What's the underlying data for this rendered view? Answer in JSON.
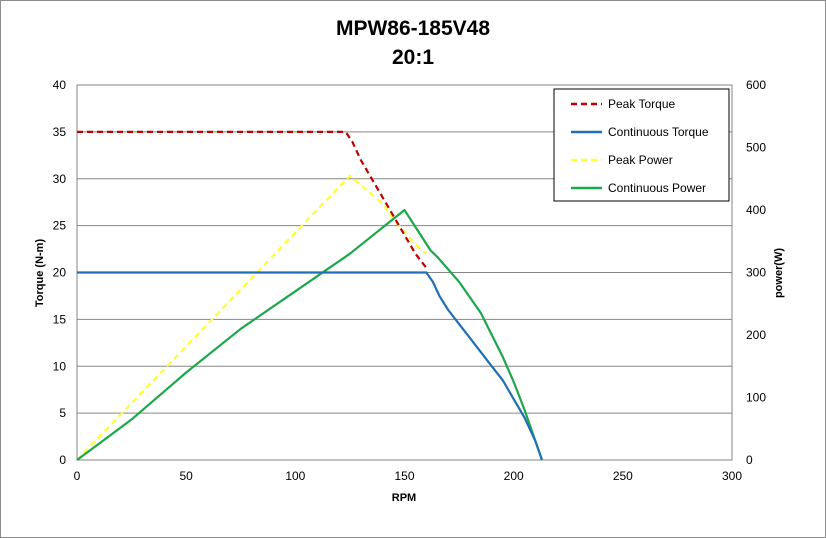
{
  "chart_data": {
    "type": "line",
    "title": "MPW86-185V48",
    "subtitle": "20:1",
    "xlabel": "RPM",
    "ylabel": "Torque (N-m)",
    "y2label": "power(W)",
    "xlim": [
      0,
      300
    ],
    "ylim": [
      0,
      40
    ],
    "y2lim": [
      0,
      600
    ],
    "xticks": [
      0,
      50,
      100,
      150,
      200,
      250,
      300
    ],
    "yticks": [
      0,
      5,
      10,
      15,
      20,
      25,
      30,
      35,
      40
    ],
    "y2ticks": [
      0,
      100,
      200,
      300,
      400,
      500,
      600
    ],
    "grid": true,
    "legend_position": "top-right",
    "series": [
      {
        "name": "Peak Torque",
        "axis": "left",
        "color": "#c00000",
        "dash": true,
        "points": [
          [
            0,
            35
          ],
          [
            123,
            35
          ],
          [
            126,
            34
          ],
          [
            130,
            32
          ],
          [
            140,
            28
          ],
          [
            150,
            24
          ],
          [
            155,
            22
          ],
          [
            160,
            20.5
          ]
        ]
      },
      {
        "name": "Continuous Torque",
        "axis": "left",
        "color": "#1f6fb8",
        "dash": false,
        "points": [
          [
            0,
            20
          ],
          [
            160,
            20
          ],
          [
            163,
            19
          ],
          [
            166,
            17.5
          ],
          [
            170,
            16
          ],
          [
            175,
            14.5
          ],
          [
            180,
            13
          ],
          [
            185,
            11.5
          ],
          [
            190,
            10
          ],
          [
            195,
            8.5
          ],
          [
            200,
            6.5
          ],
          [
            205,
            4.5
          ],
          [
            210,
            2
          ],
          [
            213,
            0
          ]
        ]
      },
      {
        "name": "Peak Power",
        "axis": "right",
        "color": "#ffff33",
        "dash": true,
        "points": [
          [
            0,
            0
          ],
          [
            125,
            455
          ],
          [
            130,
            440
          ],
          [
            135,
            425
          ],
          [
            140,
            410
          ],
          [
            145,
            385
          ],
          [
            150,
            365
          ],
          [
            155,
            345
          ],
          [
            160,
            330
          ]
        ]
      },
      {
        "name": "Continuous Power",
        "axis": "right",
        "color": "#1aa84a",
        "dash": false,
        "points": [
          [
            0,
            0
          ],
          [
            25,
            65
          ],
          [
            50,
            140
          ],
          [
            75,
            210
          ],
          [
            100,
            270
          ],
          [
            125,
            330
          ],
          [
            150,
            400
          ],
          [
            160,
            330
          ],
          [
            155,
            320
          ],
          [
            160,
            333
          ],
          [
            162,
            335
          ],
          [
            165,
            325
          ],
          [
            170,
            305
          ],
          [
            175,
            285
          ],
          [
            180,
            260
          ],
          [
            185,
            235
          ],
          [
            190,
            200
          ],
          [
            195,
            165
          ],
          [
            200,
            125
          ],
          [
            205,
            80
          ],
          [
            210,
            30
          ],
          [
            213,
            0
          ]
        ]
      }
    ]
  }
}
